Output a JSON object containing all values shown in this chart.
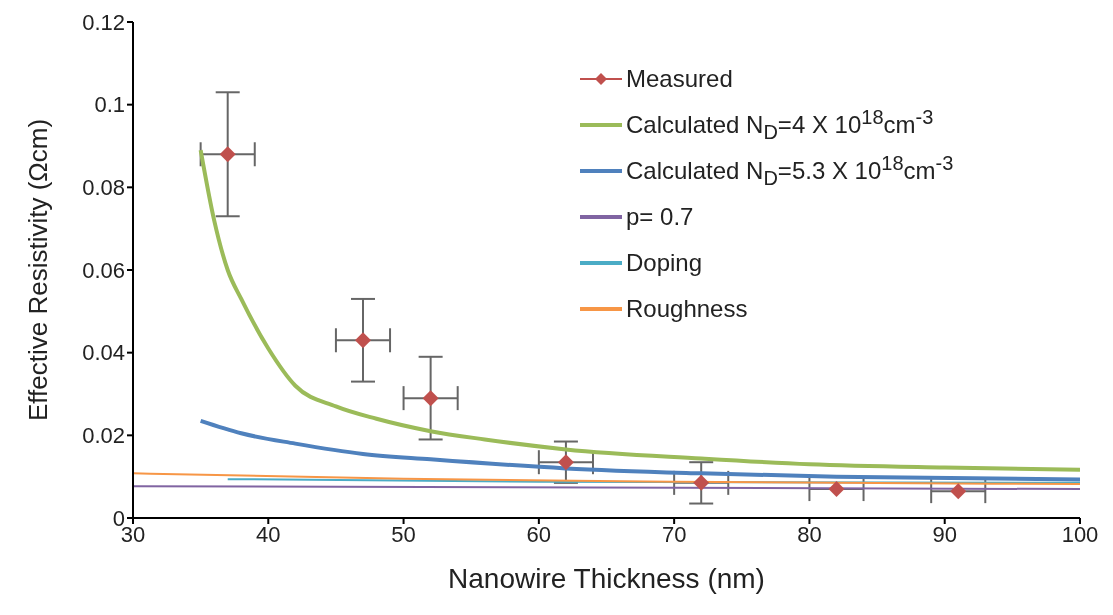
{
  "chart_data": {
    "type": "line",
    "xlabel": "Nanowire Thickness (nm)",
    "ylabel": "Effective Resistivity (Ωcm)",
    "xlim": [
      30,
      100
    ],
    "xticks": [
      30,
      40,
      50,
      60,
      70,
      80,
      90,
      100
    ],
    "ylim": [
      0,
      0.12
    ],
    "yticks": [
      0,
      0.02,
      0.04,
      0.06,
      0.08,
      0.1,
      0.12
    ],
    "grid": false,
    "legend": "top right",
    "line_style": "solid",
    "series": [
      {
        "name": "Measured",
        "type": "scatter",
        "marker": "diamond",
        "color": "#c0504d",
        "x": [
          37,
          47,
          52,
          62,
          72,
          82,
          91
        ],
        "values": [
          0.088,
          0.043,
          0.029,
          0.0135,
          0.0085,
          0.007,
          0.0065
        ],
        "errors": [
          0.015,
          0.01,
          0.01,
          0.005,
          0.005,
          null,
          null
        ],
        "xerrors": [
          2,
          2,
          2,
          2,
          2,
          2,
          2
        ]
      },
      {
        "name": "Calculated N$_{D}$=4 X 10$^{18}$cm$^{-3}$",
        "color": "#9bbb59",
        "x": [
          35,
          36,
          37,
          38,
          40,
          42,
          45,
          48,
          52,
          56,
          62,
          72,
          80,
          90,
          100
        ],
        "values": [
          0.089,
          0.072,
          0.06,
          0.053,
          0.041,
          0.032,
          0.027,
          0.024,
          0.021,
          0.019,
          0.0166,
          0.0144,
          0.013,
          0.0122,
          0.0117
        ]
      },
      {
        "name": "Calculated N$_{D}$=5.3 X 10$^{18}$cm$^{-3}$",
        "color": "#4f81bd",
        "x": [
          35,
          38,
          42,
          47,
          52,
          62,
          72,
          82,
          100
        ],
        "values": [
          0.0235,
          0.0205,
          0.018,
          0.0155,
          0.0142,
          0.012,
          0.0108,
          0.01,
          0.0093
        ]
      },
      {
        "name": "p= 0.7",
        "color": "#8064a2",
        "x": [
          30,
          100
        ],
        "values": [
          0.0077,
          0.007
        ]
      },
      {
        "name": "Doping",
        "color": "#4bacc6",
        "x": [
          37,
          60,
          100
        ],
        "values": [
          0.0094,
          0.0088,
          0.0085
        ]
      },
      {
        "name": "Roughness",
        "color": "#f79646",
        "x": [
          30,
          50,
          70,
          100
        ],
        "values": [
          0.0108,
          0.0095,
          0.0088,
          0.0082
        ]
      }
    ]
  }
}
